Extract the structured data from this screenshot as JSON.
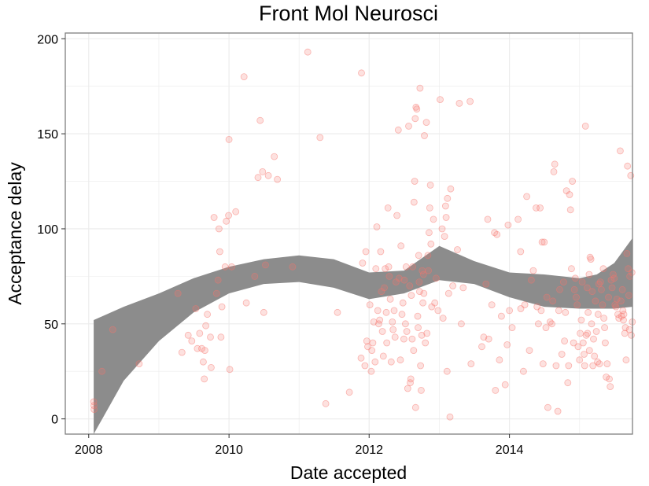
{
  "chart_data": {
    "type": "scatter",
    "title": "Front Mol Neurosci",
    "xlabel": "Date accepted",
    "ylabel": "Acceptance delay",
    "xlim": [
      "2007-09-01",
      "2015-10-04"
    ],
    "ylim": [
      -8,
      203
    ],
    "x_ticks": [
      {
        "label": "2008",
        "value": "2008-01-01"
      },
      {
        "label": "2010",
        "value": "2010-01-01"
      },
      {
        "label": "2012",
        "value": "2012-01-01"
      },
      {
        "label": "2014",
        "value": "2014-01-01"
      }
    ],
    "y_ticks": [
      0,
      50,
      100,
      150,
      200
    ],
    "grid": true,
    "colors": {
      "points": "#f8766d",
      "band": "#8c8c8c",
      "panel_border": "#7f7f7f",
      "grid": "#ebebeb"
    },
    "points": [
      [
        "2008-01-27",
        9
      ],
      [
        "2008-01-28",
        7
      ],
      [
        "2008-01-29",
        5
      ],
      [
        "2008-03-10",
        25
      ],
      [
        "2008-05-05",
        47
      ],
      [
        "2008-09-20",
        29
      ],
      [
        "2009-04-10",
        66
      ],
      [
        "2009-05-01",
        35
      ],
      [
        "2009-06-02",
        44
      ],
      [
        "2009-06-21",
        41
      ],
      [
        "2009-07-12",
        58
      ],
      [
        "2009-08-01",
        45
      ],
      [
        "2009-07-20",
        37
      ],
      [
        "2009-08-12",
        37
      ],
      [
        "2009-08-20",
        30
      ],
      [
        "2009-08-25",
        21
      ],
      [
        "2009-08-28",
        36
      ],
      [
        "2009-09-02",
        49
      ],
      [
        "2009-09-10",
        55
      ],
      [
        "2009-09-26",
        43
      ],
      [
        "2009-09-30",
        27
      ],
      [
        "2009-10-15",
        106
      ],
      [
        "2009-10-28",
        66
      ],
      [
        "2009-11-05",
        73
      ],
      [
        "2009-11-10",
        100
      ],
      [
        "2009-11-14",
        88
      ],
      [
        "2009-11-20",
        43
      ],
      [
        "2009-11-25",
        59
      ],
      [
        "2009-12-12",
        80
      ],
      [
        "2009-12-18",
        104
      ],
      [
        "2009-12-30",
        107
      ],
      [
        "2010-01-01",
        147
      ],
      [
        "2010-01-05",
        26
      ],
      [
        "2010-01-15",
        80
      ],
      [
        "2010-02-05",
        109
      ],
      [
        "2010-03-20",
        180
      ],
      [
        "2010-04-01",
        61
      ],
      [
        "2010-05-15",
        75
      ],
      [
        "2010-06-01",
        127
      ],
      [
        "2010-06-12",
        157
      ],
      [
        "2010-06-25",
        130
      ],
      [
        "2010-07-01",
        56
      ],
      [
        "2010-07-10",
        81
      ],
      [
        "2010-07-25",
        128
      ],
      [
        "2010-08-25",
        138
      ],
      [
        "2010-09-10",
        126
      ],
      [
        "2010-11-28",
        80
      ],
      [
        "2011-02-15",
        193
      ],
      [
        "2011-04-20",
        148
      ],
      [
        "2011-05-20",
        8
      ],
      [
        "2011-07-20",
        56
      ],
      [
        "2011-09-20",
        14
      ],
      [
        "2011-11-22",
        182
      ],
      [
        "2011-11-20",
        32
      ],
      [
        "2011-11-28",
        82
      ],
      [
        "2011-12-10",
        28
      ],
      [
        "2011-12-15",
        88
      ],
      [
        "2011-12-20",
        41
      ],
      [
        "2011-12-25",
        38
      ],
      [
        "2012-01-05",
        60
      ],
      [
        "2012-01-12",
        25
      ],
      [
        "2012-01-15",
        36
      ],
      [
        "2012-01-20",
        40
      ],
      [
        "2012-01-25",
        51
      ],
      [
        "2012-02-01",
        30
      ],
      [
        "2012-02-05",
        79
      ],
      [
        "2012-02-10",
        101
      ],
      [
        "2012-02-15",
        57
      ],
      [
        "2012-02-20",
        50
      ],
      [
        "2012-02-25",
        52
      ],
      [
        "2012-03-01",
        88
      ],
      [
        "2012-03-05",
        67
      ],
      [
        "2012-03-10",
        46
      ],
      [
        "2012-03-15",
        33
      ],
      [
        "2012-03-20",
        69
      ],
      [
        "2012-03-25",
        79
      ],
      [
        "2012-03-30",
        56
      ],
      [
        "2012-04-02",
        40
      ],
      [
        "2012-04-08",
        111
      ],
      [
        "2012-04-12",
        80
      ],
      [
        "2012-04-15",
        75
      ],
      [
        "2012-04-20",
        63
      ],
      [
        "2012-04-25",
        30
      ],
      [
        "2012-05-01",
        51
      ],
      [
        "2012-05-05",
        47
      ],
      [
        "2012-05-10",
        57
      ],
      [
        "2012-05-15",
        43
      ],
      [
        "2012-05-20",
        72
      ],
      [
        "2012-05-25",
        107
      ],
      [
        "2012-06-01",
        152
      ],
      [
        "2012-06-05",
        74
      ],
      [
        "2012-06-12",
        31
      ],
      [
        "2012-06-15",
        91
      ],
      [
        "2012-06-20",
        55
      ],
      [
        "2012-06-25",
        61
      ],
      [
        "2012-06-30",
        42
      ],
      [
        "2012-07-02",
        73
      ],
      [
        "2012-07-08",
        50
      ],
      [
        "2012-07-12",
        80
      ],
      [
        "2012-07-15",
        46
      ],
      [
        "2012-07-20",
        16
      ],
      [
        "2012-07-25",
        154
      ],
      [
        "2012-07-30",
        70
      ],
      [
        "2012-08-02",
        19
      ],
      [
        "2012-08-05",
        21
      ],
      [
        "2012-08-08",
        65
      ],
      [
        "2012-08-12",
        42
      ],
      [
        "2012-08-15",
        80
      ],
      [
        "2012-08-20",
        36
      ],
      [
        "2012-08-22",
        114
      ],
      [
        "2012-08-25",
        125
      ],
      [
        "2012-08-28",
        158
      ],
      [
        "2012-08-30",
        6
      ],
      [
        "2012-09-01",
        164
      ],
      [
        "2012-09-05",
        163
      ],
      [
        "2012-09-10",
        54
      ],
      [
        "2012-09-12",
        48
      ],
      [
        "2012-09-15",
        86
      ],
      [
        "2012-09-18",
        72
      ],
      [
        "2012-09-20",
        67
      ],
      [
        "2012-09-22",
        174
      ],
      [
        "2012-09-25",
        28
      ],
      [
        "2012-09-28",
        15
      ],
      [
        "2012-10-01",
        44
      ],
      [
        "2012-10-04",
        78
      ],
      [
        "2012-10-07",
        61
      ],
      [
        "2012-10-10",
        76
      ],
      [
        "2012-10-12",
        66
      ],
      [
        "2012-10-15",
        149
      ],
      [
        "2012-10-20",
        40
      ],
      [
        "2012-10-25",
        156
      ],
      [
        "2012-10-28",
        45
      ],
      [
        "2012-11-02",
        86
      ],
      [
        "2012-11-05",
        78
      ],
      [
        "2012-11-08",
        98
      ],
      [
        "2012-11-12",
        111
      ],
      [
        "2012-11-15",
        123
      ],
      [
        "2012-11-18",
        92
      ],
      [
        "2012-11-22",
        59
      ],
      [
        "2012-12-01",
        105
      ],
      [
        "2012-12-08",
        61
      ],
      [
        "2012-12-15",
        74
      ],
      [
        "2012-12-25",
        57
      ],
      [
        "2013-01-05",
        168
      ],
      [
        "2013-01-15",
        100
      ],
      [
        "2013-01-20",
        53
      ],
      [
        "2013-01-28",
        96
      ],
      [
        "2013-02-02",
        112
      ],
      [
        "2013-02-05",
        106
      ],
      [
        "2013-02-10",
        25
      ],
      [
        "2013-02-12",
        116
      ],
      [
        "2013-02-18",
        66
      ],
      [
        "2013-02-25",
        1
      ],
      [
        "2013-03-01",
        121
      ],
      [
        "2013-03-12",
        70
      ],
      [
        "2013-04-05",
        89
      ],
      [
        "2013-04-15",
        166
      ],
      [
        "2013-04-25",
        50
      ],
      [
        "2013-05-05",
        69
      ],
      [
        "2013-06-10",
        167
      ],
      [
        "2013-06-15",
        29
      ],
      [
        "2013-08-10",
        38
      ],
      [
        "2013-08-20",
        43
      ],
      [
        "2013-09-01",
        71
      ],
      [
        "2013-09-10",
        105
      ],
      [
        "2013-09-15",
        42
      ],
      [
        "2013-10-01",
        60
      ],
      [
        "2013-10-15",
        98
      ],
      [
        "2013-10-20",
        15
      ],
      [
        "2013-10-28",
        97
      ],
      [
        "2013-11-10",
        31
      ],
      [
        "2013-11-20",
        54
      ],
      [
        "2013-12-10",
        18
      ],
      [
        "2013-12-20",
        39
      ],
      [
        "2013-12-25",
        102
      ],
      [
        "2014-01-01",
        57
      ],
      [
        "2014-01-15",
        48
      ],
      [
        "2014-02-15",
        105
      ],
      [
        "2014-02-28",
        88
      ],
      [
        "2014-03-01",
        58
      ],
      [
        "2014-03-15",
        25
      ],
      [
        "2014-03-22",
        60
      ],
      [
        "2014-04-01",
        117
      ],
      [
        "2014-04-15",
        36
      ],
      [
        "2014-04-25",
        73
      ],
      [
        "2014-05-05",
        78
      ],
      [
        "2014-05-20",
        111
      ],
      [
        "2014-05-25",
        59
      ],
      [
        "2014-06-01",
        50
      ],
      [
        "2014-06-10",
        111
      ],
      [
        "2014-06-15",
        57
      ],
      [
        "2014-06-20",
        93
      ],
      [
        "2014-06-25",
        29
      ],
      [
        "2014-07-01",
        93
      ],
      [
        "2014-07-10",
        48
      ],
      [
        "2014-07-15",
        64
      ],
      [
        "2014-07-20",
        6
      ],
      [
        "2014-08-01",
        51
      ],
      [
        "2014-08-10",
        50
      ],
      [
        "2014-08-15",
        62
      ],
      [
        "2014-08-20",
        130
      ],
      [
        "2014-08-25",
        134
      ],
      [
        "2014-09-01",
        28
      ],
      [
        "2014-09-10",
        4
      ],
      [
        "2014-09-15",
        57
      ],
      [
        "2014-09-20",
        68
      ],
      [
        "2014-10-01",
        34
      ],
      [
        "2014-10-10",
        72
      ],
      [
        "2014-10-15",
        41
      ],
      [
        "2014-10-20",
        56
      ],
      [
        "2014-10-25",
        120
      ],
      [
        "2014-11-01",
        19
      ],
      [
        "2014-11-05",
        28
      ],
      [
        "2014-11-10",
        118
      ],
      [
        "2014-11-15",
        110
      ],
      [
        "2014-11-20",
        79
      ],
      [
        "2014-11-25",
        125
      ],
      [
        "2014-12-01",
        40
      ],
      [
        "2014-12-05",
        68
      ],
      [
        "2014-12-10",
        74
      ],
      [
        "2014-12-15",
        64
      ],
      [
        "2014-12-20",
        60
      ],
      [
        "2014-12-25",
        38
      ],
      [
        "2015-01-01",
        31
      ],
      [
        "2015-01-05",
        45
      ],
      [
        "2015-01-10",
        52
      ],
      [
        "2015-01-15",
        72
      ],
      [
        "2015-01-20",
        40
      ],
      [
        "2015-01-25",
        34
      ],
      [
        "2015-01-28",
        28
      ],
      [
        "2015-02-01",
        154
      ],
      [
        "2015-02-05",
        44
      ],
      [
        "2015-02-10",
        69
      ],
      [
        "2015-02-12",
        45
      ],
      [
        "2015-02-15",
        56
      ],
      [
        "2015-02-20",
        76
      ],
      [
        "2015-02-22",
        36
      ],
      [
        "2015-02-25",
        85
      ],
      [
        "2015-03-01",
        84
      ],
      [
        "2015-03-05",
        50
      ],
      [
        "2015-03-08",
        67
      ],
      [
        "2015-03-12",
        28
      ],
      [
        "2015-03-15",
        42
      ],
      [
        "2015-03-20",
        33
      ],
      [
        "2015-03-25",
        62
      ],
      [
        "2015-03-30",
        46
      ],
      [
        "2015-04-05",
        30
      ],
      [
        "2015-04-08",
        55
      ],
      [
        "2015-04-12",
        71
      ],
      [
        "2015-04-15",
        29
      ],
      [
        "2015-04-20",
        72
      ],
      [
        "2015-04-25",
        68
      ],
      [
        "2015-05-01",
        60
      ],
      [
        "2015-05-05",
        79
      ],
      [
        "2015-05-08",
        53
      ],
      [
        "2015-05-12",
        48
      ],
      [
        "2015-05-15",
        40
      ],
      [
        "2015-05-20",
        22
      ],
      [
        "2015-05-25",
        29
      ],
      [
        "2015-06-01",
        64
      ],
      [
        "2015-06-05",
        21
      ],
      [
        "2015-06-10",
        17
      ],
      [
        "2015-06-15",
        73
      ],
      [
        "2015-06-20",
        69
      ],
      [
        "2015-06-25",
        76
      ],
      [
        "2015-07-01",
        74
      ],
      [
        "2015-07-05",
        60
      ],
      [
        "2015-07-10",
        59
      ],
      [
        "2015-07-15",
        63
      ],
      [
        "2015-07-20",
        55
      ],
      [
        "2015-07-25",
        53
      ],
      [
        "2015-08-01",
        141
      ],
      [
        "2015-08-05",
        62
      ],
      [
        "2015-08-08",
        54
      ],
      [
        "2015-08-12",
        68
      ],
      [
        "2015-08-15",
        57
      ],
      [
        "2015-08-18",
        52
      ],
      [
        "2015-08-20",
        55
      ],
      [
        "2015-08-25",
        45
      ],
      [
        "2015-08-28",
        48
      ],
      [
        "2015-09-01",
        31
      ],
      [
        "2015-09-05",
        87
      ],
      [
        "2015-09-08",
        133
      ],
      [
        "2015-09-12",
        79
      ],
      [
        "2015-09-15",
        65
      ],
      [
        "2015-09-18",
        47
      ],
      [
        "2015-09-20",
        75
      ],
      [
        "2015-09-25",
        128
      ],
      [
        "2015-09-28",
        44
      ],
      [
        "2015-10-01",
        77
      ],
      [
        "2015-10-03",
        51
      ]
    ],
    "smooth_band": {
      "x": [
        "2008-01-27",
        "2008-07-01",
        "2009-01-01",
        "2009-07-01",
        "2010-01-01",
        "2010-07-01",
        "2011-01-01",
        "2011-07-01",
        "2012-01-01",
        "2012-07-01",
        "2013-01-01",
        "2013-07-01",
        "2014-01-01",
        "2014-07-01",
        "2015-01-01",
        "2015-04-01",
        "2015-07-01",
        "2015-10-03"
      ],
      "upper": [
        52,
        59,
        66,
        74,
        80,
        84,
        86,
        84,
        77,
        78,
        91,
        83,
        77,
        76,
        74,
        76,
        82,
        95
      ],
      "lower": [
        -8,
        20,
        41,
        56,
        66,
        71,
        72,
        69,
        63,
        66,
        73,
        71,
        64,
        59,
        58,
        58,
        58,
        59
      ]
    }
  }
}
